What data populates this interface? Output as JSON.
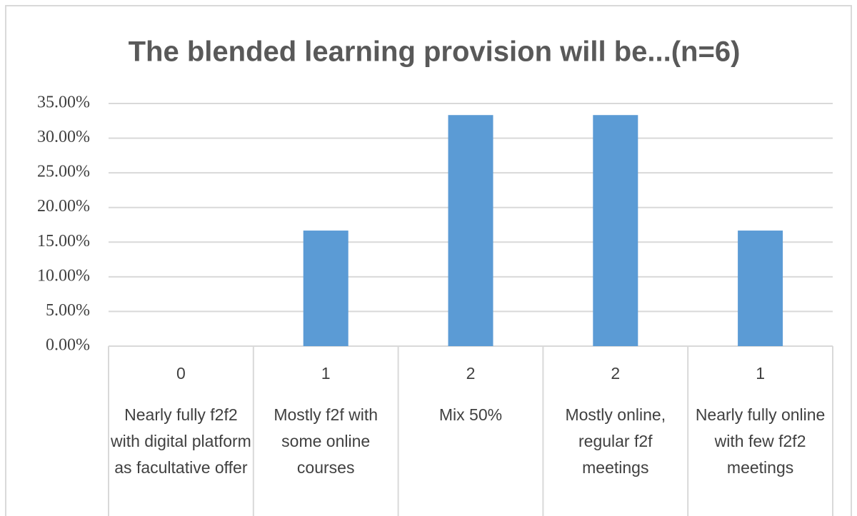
{
  "chart_data": {
    "type": "bar",
    "title": "The blended learning provision will be...(n=6)",
    "counts": [
      0,
      1,
      2,
      2,
      1
    ],
    "categories": [
      "Nearly fully f2f2 with digital platform as facultative offer",
      "Mostly f2f with some online courses",
      "Mix 50%",
      "Mostly online, regular f2f meetings",
      "Nearly fully online with few f2f2 meetings"
    ],
    "values": [
      0,
      16.67,
      33.33,
      33.33,
      16.67
    ],
    "color": "#5b9bd5",
    "ylim": [
      0,
      35
    ],
    "yticks": [
      {
        "value": 0,
        "label": "0.00%"
      },
      {
        "value": 5,
        "label": "5.00%"
      },
      {
        "value": 10,
        "label": "10.00%"
      },
      {
        "value": 15,
        "label": "15.00%"
      },
      {
        "value": 20,
        "label": "20.00%"
      },
      {
        "value": 25,
        "label": "25.00%"
      },
      {
        "value": 30,
        "label": "30.00%"
      },
      {
        "value": 35,
        "label": "35.00%"
      }
    ],
    "grid": true
  }
}
